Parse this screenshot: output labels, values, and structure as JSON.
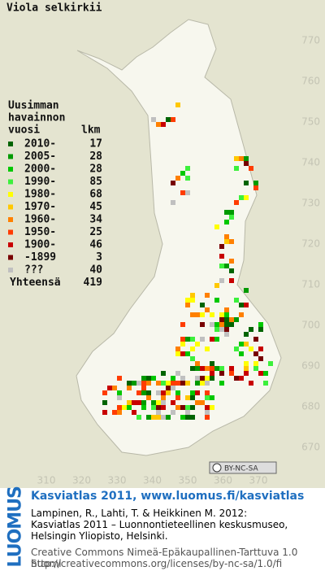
{
  "map": {
    "title": "Viola selkirkii",
    "yticks": [
      770,
      760,
      750,
      740,
      730,
      720,
      710,
      700,
      690,
      680,
      670
    ],
    "xticks": [
      310,
      320,
      330,
      340,
      350,
      360,
      370
    ]
  },
  "legend": {
    "heading": [
      "Uusimman",
      "havainnon",
      "vuosi"
    ],
    "count_heading": "lkm",
    "rows": [
      {
        "label": "2010-",
        "count": 17,
        "color": "#006400"
      },
      {
        "label": "2005-",
        "count": 28,
        "color": "#009a00"
      },
      {
        "label": "2000-",
        "count": 28,
        "color": "#00c800"
      },
      {
        "label": "1990-",
        "count": 85,
        "color": "#3cf03c"
      },
      {
        "label": "1980-",
        "count": 68,
        "color": "#ffff00"
      },
      {
        "label": "1970-",
        "count": 45,
        "color": "#ffc800"
      },
      {
        "label": "1960-",
        "count": 34,
        "color": "#ff8000"
      },
      {
        "label": "1950-",
        "count": 25,
        "color": "#ff3c00"
      },
      {
        "label": "1900-",
        "count": 46,
        "color": "#c80000"
      },
      {
        "label": "-1899",
        "count": 3,
        "color": "#780000"
      },
      {
        "label": "???",
        "count": 40,
        "color": "#c0c0c0"
      }
    ],
    "total_label": "Yhteensä",
    "total": 419
  },
  "badge": "BY-NC-SA",
  "footer": {
    "logo": "LUOMUS",
    "link": "Kasviatlas 2011, www.luomus.fi/kasviatlas",
    "citation": [
      "Lampinen, R., Lahti, T. & Heikkinen M. 2012:",
      "Kasviatlas 2011 – Luonnontieteellinen keskusmuseo,",
      "Helsingin Yliopisto, Helsinki."
    ],
    "license": [
      "Creative Commons Nimeä-Epäkaupallinen-Tarttuva 1.0 Suomi",
      "http://creativecommons.org/licenses/by-nc-sa/1.0/fi"
    ]
  }
}
